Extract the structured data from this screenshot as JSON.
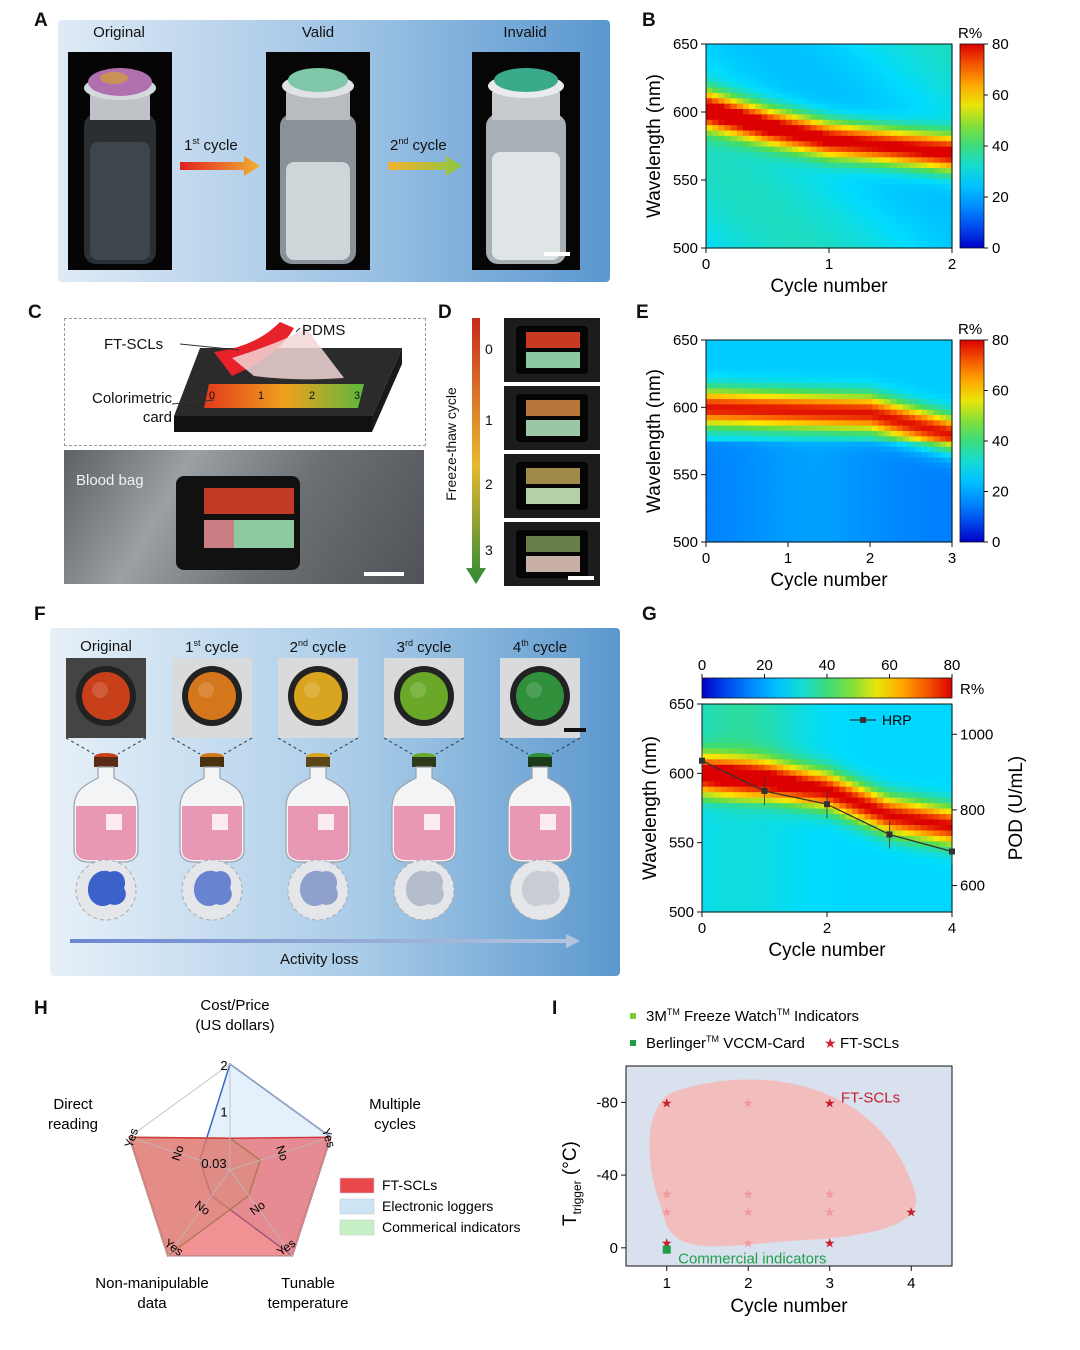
{
  "panel_letters": {
    "A": "A",
    "B": "B",
    "C": "C",
    "D": "D",
    "E": "E",
    "F": "F",
    "G": "G",
    "H": "H",
    "I": "I"
  },
  "panel_a": {
    "labels": [
      "Original",
      "Valid",
      "Invalid"
    ],
    "arrow1": {
      "text": "1",
      "sup": "st",
      "rest": " cycle"
    },
    "arrow2": {
      "text": "2",
      "sup": "nd",
      "rest": " cycle"
    }
  },
  "panel_c": {
    "ft_scls": "FT-SCLs",
    "pdms": "PDMS",
    "card_line1": "Colorimetric",
    "card_line2": "card",
    "card_ticks": [
      "0",
      "1",
      "2",
      "3"
    ],
    "blood_bag": "Blood bag"
  },
  "panel_d": {
    "axis_label": "Freeze-thaw cycle",
    "ticks": [
      "0",
      "1",
      "2",
      "3"
    ]
  },
  "panel_f": {
    "labels": [
      {
        "base": "Original",
        "sup": "",
        "rest": ""
      },
      {
        "base": "1",
        "sup": "st",
        "rest": " cycle"
      },
      {
        "base": "2",
        "sup": "nd",
        "rest": " cycle"
      },
      {
        "base": "3",
        "sup": "rd",
        "rest": " cycle"
      },
      {
        "base": "4",
        "sup": "th",
        "rest": " cycle"
      }
    ],
    "activity": "Activity loss",
    "cap_colors": [
      "#c8401a",
      "#d4761c",
      "#d9a420",
      "#6aa82a",
      "#2f8f3a"
    ]
  },
  "chart_data": [
    {
      "id": "B",
      "type": "heatmap",
      "xlabel": "Cycle number",
      "ylabel": "Wavelength (nm)",
      "xlim": [
        0,
        2
      ],
      "ylim": [
        500,
        650
      ],
      "xticks": [
        "0",
        "1",
        "2"
      ],
      "yticks": [
        "500",
        "550",
        "600",
        "650"
      ],
      "colorbar": {
        "label": "R%",
        "min": 0,
        "max": 80,
        "ticks": [
          "0",
          "20",
          "40",
          "60",
          "80"
        ]
      },
      "peak": {
        "x": [
          0,
          0.5,
          1,
          1.5,
          2
        ],
        "y": [
          602,
          590,
          580,
          575,
          570
        ]
      }
    },
    {
      "id": "E",
      "type": "heatmap",
      "xlabel": "Cycle number",
      "ylabel": "Wavelength (nm)",
      "xlim": [
        0,
        3
      ],
      "ylim": [
        500,
        650
      ],
      "xticks": [
        "0",
        "1",
        "2",
        "3"
      ],
      "yticks": [
        "500",
        "550",
        "600",
        "650"
      ],
      "colorbar": {
        "label": "R%",
        "min": 0,
        "max": 80,
        "ticks": [
          "0",
          "20",
          "40",
          "60",
          "80"
        ]
      },
      "peak": {
        "x": [
          0,
          1,
          2,
          2.5,
          3
        ],
        "y": [
          600,
          598,
          596,
          588,
          580
        ]
      }
    },
    {
      "id": "G",
      "type": "heatmap",
      "xlabel": "Cycle number",
      "ylabel": "Wavelength (nm)",
      "y2label": "POD (U/mL)",
      "xlim": [
        0,
        4
      ],
      "ylim": [
        500,
        650
      ],
      "y2lim": [
        530,
        1080
      ],
      "xticks": [
        "0",
        "2",
        "4"
      ],
      "yticks": [
        "500",
        "550",
        "600",
        "650"
      ],
      "y2ticks": [
        "600",
        "800",
        "1000"
      ],
      "colorbar": {
        "label": "R%",
        "min": 0,
        "max": 80,
        "ticks": [
          "0",
          "20",
          "40",
          "60",
          "80"
        ]
      },
      "peak": {
        "x": [
          0,
          1,
          2,
          3,
          4
        ],
        "y": [
          600,
          596,
          588,
          570,
          562
        ]
      },
      "series": [
        {
          "name": "HRP",
          "x": [
            0,
            1,
            2,
            3,
            4
          ],
          "y": [
            930,
            850,
            815,
            735,
            690
          ]
        }
      ]
    },
    {
      "id": "H",
      "type": "radar",
      "axes": [
        {
          "line1": "Cost/Price",
          "line2": "(US dollars)"
        },
        {
          "line1": "Multiple",
          "line2": "cycles"
        },
        {
          "line1": "Tunable",
          "line2": "temperature"
        },
        {
          "line1": "Non-manipulable",
          "line2": "data"
        },
        {
          "line1": "Direct",
          "line2": "reading"
        }
      ],
      "tick_labels": [
        "2",
        "1",
        "0.03"
      ],
      "yes_labels": [
        "Yes",
        "Yes",
        "Yes",
        "Yes"
      ],
      "no_labels": [
        "No",
        "No",
        "No",
        "No"
      ],
      "series": [
        {
          "name": "FT-SCLs",
          "color": "#e8474c",
          "values": [
            0.3,
            1,
            1,
            1,
            1
          ]
        },
        {
          "name": "Electronic loggers",
          "color": "#cde4f5",
          "values": [
            1,
            1,
            1,
            0.3,
            0.3
          ]
        },
        {
          "name": "Commerical indicators",
          "color": "#c6efc6",
          "values": [
            0.3,
            0.3,
            0.3,
            1,
            1
          ]
        }
      ]
    },
    {
      "id": "I",
      "type": "scatter",
      "xlabel": "Cycle number",
      "ylabel": "T",
      "ylabel_sub": "trigger",
      "ylabel_unit": " (°C)",
      "xlim": [
        0.5,
        4.5
      ],
      "ylim": [
        10,
        -100
      ],
      "xticks": [
        "1",
        "2",
        "3",
        "4"
      ],
      "yticks": [
        "-80",
        "-40",
        "0"
      ],
      "legend": [
        {
          "pre": "3M",
          "sup1": "TM",
          "mid": " Freeze Watch",
          "sup2": "TM",
          "post": " Indicators",
          "color": "#7ccc3a"
        },
        {
          "pre": "Berlinger",
          "sup1": "TM",
          "mid": " VCCM-Card",
          "sup2": "",
          "post": "",
          "color": "#1f9e46"
        },
        {
          "pre": "FT-SCLs",
          "sup1": "",
          "mid": "",
          "sup2": "",
          "post": "",
          "color": "#cc2233"
        }
      ],
      "region_label": "FT-SCLs",
      "commercial_label": "Commercial indicators",
      "points": [
        {
          "x": 1,
          "y": -80
        },
        {
          "x": 1,
          "y": -30
        },
        {
          "x": 1,
          "y": -20
        },
        {
          "x": 1,
          "y": -3
        },
        {
          "x": 2,
          "y": -80
        },
        {
          "x": 2,
          "y": -30
        },
        {
          "x": 2,
          "y": -20
        },
        {
          "x": 2,
          "y": -3
        },
        {
          "x": 3,
          "y": -80
        },
        {
          "x": 3,
          "y": -30
        },
        {
          "x": 3,
          "y": -20
        },
        {
          "x": 3,
          "y": -3
        },
        {
          "x": 4,
          "y": -20
        }
      ]
    }
  ]
}
